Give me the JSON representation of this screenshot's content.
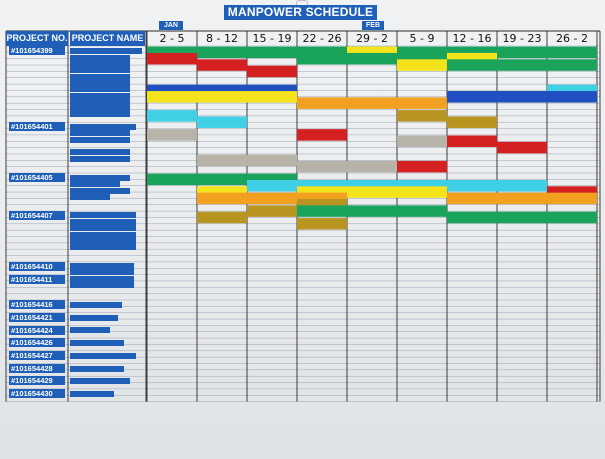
{
  "title": "MANPOWER SCHEDULE",
  "months": [
    "JAN",
    "FEB"
  ],
  "headers": {
    "project_no": "PROJECT NO.",
    "project_name": "PROJECT NAME"
  },
  "weeks": [
    "2 - 5",
    "8 - 12",
    "15 - 19",
    "22 - 26",
    "29 - 2",
    "5 - 9",
    "12 - 16",
    "19 - 23",
    "26 - 2"
  ],
  "projects": [
    "#101654399",
    "#101654401",
    "#101654405",
    "#101654407",
    "#101654410",
    "#101654411",
    "#101654416",
    "#101654421",
    "#101654424",
    "#101654426",
    "#101654427",
    "#101654428",
    "#101654429",
    "#101654430"
  ],
  "colors": {
    "green": "#1aa35a",
    "red": "#d42020",
    "yellow": "#f4e21a",
    "blue": "#1f4fc0",
    "cyan": "#3fd0e6",
    "orange": "#f2a020",
    "olive": "#b89420",
    "gray": "#b8b3a8",
    "header_blue": "#1f5fb8"
  },
  "chart_data": {
    "type": "gantt",
    "columns": [
      "2 - 5",
      "8 - 12",
      "15 - 19",
      "22 - 26",
      "29 - 2",
      "5 - 9",
      "12 - 16",
      "19 - 23",
      "26 - 2"
    ],
    "bars": [
      {
        "row": 0,
        "start": 0,
        "end": 3,
        "color": "green"
      },
      {
        "row": 0,
        "start": 3,
        "end": 9,
        "color": "green"
      },
      {
        "row": 0,
        "start": 4,
        "end": 5,
        "color": "yellow"
      },
      {
        "row": 1,
        "start": 0,
        "end": 1,
        "color": "red"
      },
      {
        "row": 1,
        "start": 3,
        "end": 6,
        "color": "green"
      },
      {
        "row": 1,
        "start": 6,
        "end": 7,
        "color": "yellow"
      },
      {
        "row": 2,
        "start": 1,
        "end": 2,
        "color": "red"
      },
      {
        "row": 2,
        "start": 5,
        "end": 6,
        "color": "yellow"
      },
      {
        "row": 2,
        "start": 6,
        "end": 9,
        "color": "green"
      },
      {
        "row": 3,
        "start": 2,
        "end": 3,
        "color": "red"
      },
      {
        "row": 6,
        "start": 0,
        "end": 3,
        "color": "blue"
      },
      {
        "row": 6,
        "start": 8,
        "end": 9,
        "color": "cyan"
      },
      {
        "row": 7,
        "start": 0,
        "end": 3,
        "color": "yellow"
      },
      {
        "row": 7,
        "start": 6,
        "end": 9,
        "color": "blue"
      },
      {
        "row": 8,
        "start": 3,
        "end": 6,
        "color": "orange"
      },
      {
        "row": 10,
        "start": 0,
        "end": 1,
        "color": "cyan"
      },
      {
        "row": 10,
        "start": 5,
        "end": 6,
        "color": "olive"
      },
      {
        "row": 11,
        "start": 1,
        "end": 2,
        "color": "cyan"
      },
      {
        "row": 11,
        "start": 6,
        "end": 7,
        "color": "olive"
      },
      {
        "row": 13,
        "start": 0,
        "end": 1,
        "color": "gray"
      },
      {
        "row": 13,
        "start": 3,
        "end": 4,
        "color": "red"
      },
      {
        "row": 14,
        "start": 5,
        "end": 6,
        "color": "gray"
      },
      {
        "row": 14,
        "start": 6,
        "end": 7,
        "color": "red"
      },
      {
        "row": 15,
        "start": 7,
        "end": 8,
        "color": "red"
      },
      {
        "row": 17,
        "start": 1,
        "end": 3,
        "color": "gray"
      },
      {
        "row": 18,
        "start": 3,
        "end": 5,
        "color": "gray"
      },
      {
        "row": 18,
        "start": 5,
        "end": 6,
        "color": "red"
      },
      {
        "row": 20,
        "start": 0,
        "end": 3,
        "color": "green"
      },
      {
        "row": 21,
        "start": 2,
        "end": 8,
        "color": "cyan"
      },
      {
        "row": 22,
        "start": 1,
        "end": 2,
        "color": "yellow"
      },
      {
        "row": 22,
        "start": 3,
        "end": 6,
        "color": "yellow"
      },
      {
        "row": 22,
        "start": 8,
        "end": 9,
        "color": "red"
      },
      {
        "row": 23,
        "start": 1,
        "end": 4,
        "color": "orange"
      },
      {
        "row": 23,
        "start": 6,
        "end": 9,
        "color": "orange"
      },
      {
        "row": 24,
        "start": 3,
        "end": 4,
        "color": "olive"
      },
      {
        "row": 25,
        "start": 2,
        "end": 3,
        "color": "olive"
      },
      {
        "row": 25,
        "start": 3,
        "end": 6,
        "color": "green"
      },
      {
        "row": 26,
        "start": 1,
        "end": 2,
        "color": "olive"
      },
      {
        "row": 26,
        "start": 6,
        "end": 9,
        "color": "green"
      },
      {
        "row": 27,
        "start": 3,
        "end": 4,
        "color": "olive"
      }
    ]
  }
}
